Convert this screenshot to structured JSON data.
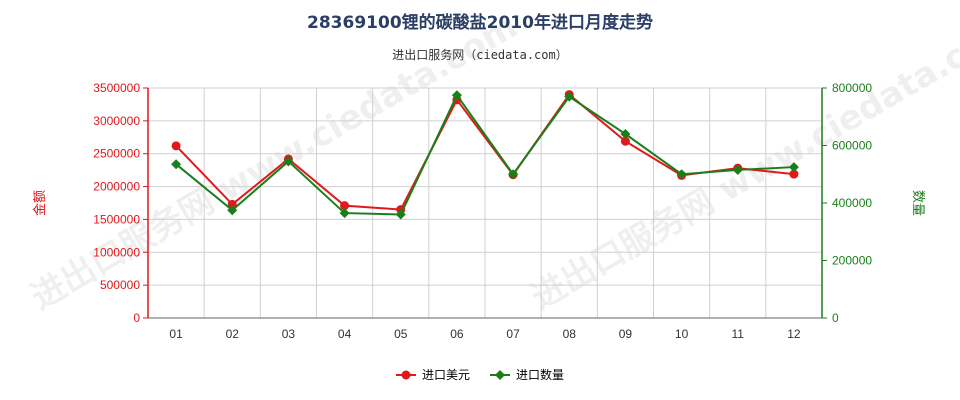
{
  "title": "28369100锂的碳酸盐2010年进口月度走势",
  "subtitle": "进出口服务网（ciedata.com）",
  "watermark": "进出口服务网 www.ciedata.com",
  "chart_data": {
    "type": "line",
    "categories": [
      "01",
      "02",
      "03",
      "04",
      "05",
      "06",
      "07",
      "08",
      "09",
      "10",
      "11",
      "12"
    ],
    "series": [
      {
        "name": "进口美元",
        "axis": "left",
        "color": "#e0191b",
        "marker": "circle",
        "values": [
          2620000,
          1730000,
          2420000,
          1710000,
          1650000,
          3320000,
          2180000,
          3400000,
          2690000,
          2170000,
          2280000,
          2190000
        ]
      },
      {
        "name": "进口数量",
        "axis": "right",
        "color": "#1a7f1a",
        "marker": "diamond",
        "values": [
          535000,
          375000,
          545000,
          365000,
          360000,
          775000,
          500000,
          770000,
          640000,
          500000,
          515000,
          525000
        ]
      }
    ],
    "left_axis": {
      "label": "金额",
      "color": "#e0191b",
      "ylim": [
        0,
        3500000
      ],
      "ticks": [
        0,
        500000,
        1000000,
        1500000,
        2000000,
        2500000,
        3000000,
        3500000
      ],
      "tick_labels": [
        "0",
        "500000",
        "1000000",
        "1500000",
        "2000000",
        "2500000",
        "3000000",
        "3500000"
      ]
    },
    "right_axis": {
      "label": "数量",
      "color": "#1a7f1a",
      "ylim": [
        0,
        800000
      ],
      "ticks": [
        0,
        200000,
        400000,
        600000,
        800000
      ],
      "tick_labels": [
        "0",
        "200000",
        "400000",
        "600000",
        "800000"
      ]
    },
    "grid": true,
    "legend_position": "bottom"
  }
}
